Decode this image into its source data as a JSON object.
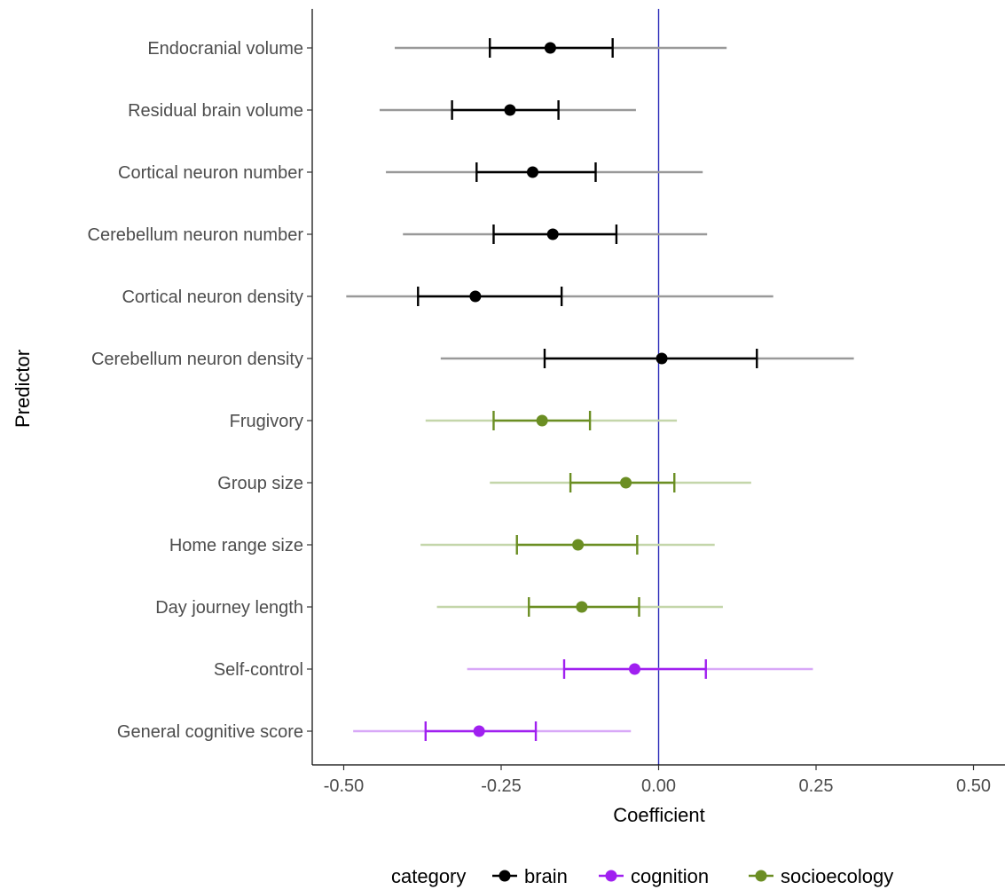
{
  "chart_data": {
    "type": "scatter",
    "subtype": "coefficient-plot",
    "xlabel": "Coefficient",
    "ylabel": "Predictor",
    "xlim": [
      -0.55,
      0.55
    ],
    "xticks": [
      -0.5,
      -0.25,
      0.0,
      0.25,
      0.5
    ],
    "xtick_labels": [
      "-0.50",
      "-0.25",
      "0.00",
      "0.25",
      "0.50"
    ],
    "reference_line": {
      "x": 0.0,
      "color": "#2a2ab8"
    },
    "grid": false,
    "legend": {
      "title": "category",
      "position": "bottom",
      "entries": [
        {
          "name": "brain",
          "color": "#000000"
        },
        {
          "name": "cognition",
          "color": "#a020f0"
        },
        {
          "name": "socioecology",
          "color": "#6b8e23"
        }
      ]
    },
    "series": [
      {
        "name": "brain",
        "color": "#000000",
        "outer_color": "#999999"
      },
      {
        "name": "cognition",
        "color": "#a020f0",
        "outer_color": "#d8a8f7"
      },
      {
        "name": "socioecology",
        "color": "#6b8e23",
        "outer_color": "#c4d6aa"
      }
    ],
    "rows": [
      {
        "predictor": "Endocranial volume",
        "category": "brain",
        "estimate": -0.172,
        "inner": [
          -0.268,
          -0.073
        ],
        "outer": [
          -0.419,
          0.108
        ]
      },
      {
        "predictor": "Residual brain volume",
        "category": "brain",
        "estimate": -0.236,
        "inner": [
          -0.328,
          -0.159
        ],
        "outer": [
          -0.443,
          -0.036
        ]
      },
      {
        "predictor": "Cortical neuron number",
        "category": "brain",
        "estimate": -0.2,
        "inner": [
          -0.289,
          -0.1
        ],
        "outer": [
          -0.433,
          0.07
        ]
      },
      {
        "predictor": "Cerebellum neuron number",
        "category": "brain",
        "estimate": -0.168,
        "inner": [
          -0.262,
          -0.067
        ],
        "outer": [
          -0.406,
          0.077
        ]
      },
      {
        "predictor": "Cortical neuron density",
        "category": "brain",
        "estimate": -0.291,
        "inner": [
          -0.382,
          -0.154
        ],
        "outer": [
          -0.496,
          0.182
        ]
      },
      {
        "predictor": "Cerebellum neuron density",
        "category": "brain",
        "estimate": 0.005,
        "inner": [
          -0.181,
          0.156
        ],
        "outer": [
          -0.346,
          0.31
        ]
      },
      {
        "predictor": "Frugivory",
        "category": "socioecology",
        "estimate": -0.185,
        "inner": [
          -0.262,
          -0.109
        ],
        "outer": [
          -0.37,
          0.029
        ]
      },
      {
        "predictor": "Group size",
        "category": "socioecology",
        "estimate": -0.052,
        "inner": [
          -0.14,
          0.025
        ],
        "outer": [
          -0.268,
          0.147
        ]
      },
      {
        "predictor": "Home range size",
        "category": "socioecology",
        "estimate": -0.128,
        "inner": [
          -0.225,
          -0.034
        ],
        "outer": [
          -0.378,
          0.089
        ]
      },
      {
        "predictor": "Day journey length",
        "category": "socioecology",
        "estimate": -0.122,
        "inner": [
          -0.206,
          -0.031
        ],
        "outer": [
          -0.352,
          0.102
        ]
      },
      {
        "predictor": "Self-control",
        "category": "cognition",
        "estimate": -0.038,
        "inner": [
          -0.15,
          0.075
        ],
        "outer": [
          -0.304,
          0.245
        ]
      },
      {
        "predictor": "General cognitive score",
        "category": "cognition",
        "estimate": -0.285,
        "inner": [
          -0.37,
          -0.195
        ],
        "outer": [
          -0.485,
          -0.044
        ]
      }
    ]
  }
}
